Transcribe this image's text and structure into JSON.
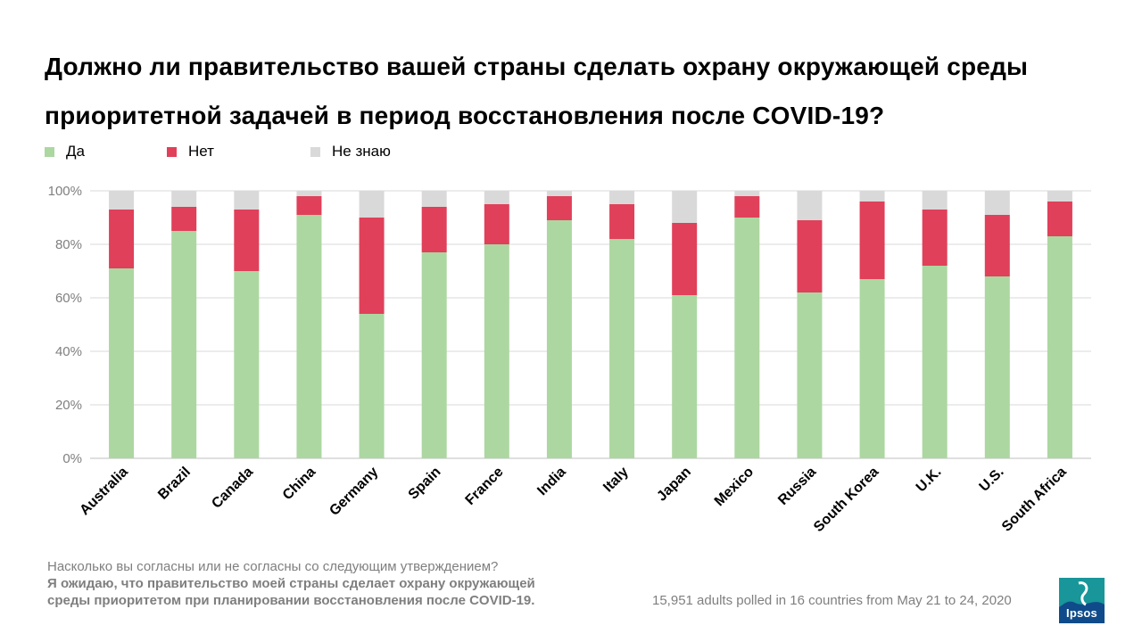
{
  "title_line1": "Должно ли правительство вашей страны сделать охрану окружающей среды",
  "title_line2": "приоритетной задачей в период восстановления после COVID-19?",
  "question_note": "Насколько вы согласны или  не согласны со следующим  утверждением?",
  "statement_note_line1": "Я ожидаю, что правительство моей страны сделает охрану окружающей",
  "statement_note_line2": "среды приоритетом при планировании восстановления после COVID-19.",
  "footer": "15,951 adults polled in 16 countries from May 21 to 24, 2020",
  "logo_text": "Ipsos",
  "chart_data": {
    "type": "bar",
    "stacked": true,
    "categories": [
      "Australia",
      "Brazil",
      "Canada",
      "China",
      "Germany",
      "Spain",
      "France",
      "India",
      "Italy",
      "Japan",
      "Mexico",
      "Russia",
      "South Korea",
      "U.K.",
      "U.S.",
      "South Africa"
    ],
    "series": [
      {
        "name": "Да",
        "color": "#acd7a1",
        "values": [
          71,
          85,
          70,
          91,
          54,
          77,
          80,
          89,
          82,
          61,
          90,
          62,
          67,
          72,
          68,
          83
        ]
      },
      {
        "name": "Нет",
        "color": "#e0405a",
        "values": [
          22,
          9,
          23,
          7,
          36,
          17,
          15,
          9,
          13,
          27,
          8,
          27,
          29,
          21,
          23,
          13
        ]
      },
      {
        "name": "Не знаю",
        "color": "#d9d9d9",
        "values": [
          7,
          6,
          7,
          2,
          10,
          6,
          5,
          2,
          5,
          12,
          2,
          11,
          4,
          7,
          9,
          4
        ]
      }
    ],
    "ylim": [
      0,
      100
    ],
    "yticks": [
      "0%",
      "20%",
      "40%",
      "60%",
      "80%",
      "100%"
    ],
    "grid": true,
    "legend": "top-left"
  }
}
